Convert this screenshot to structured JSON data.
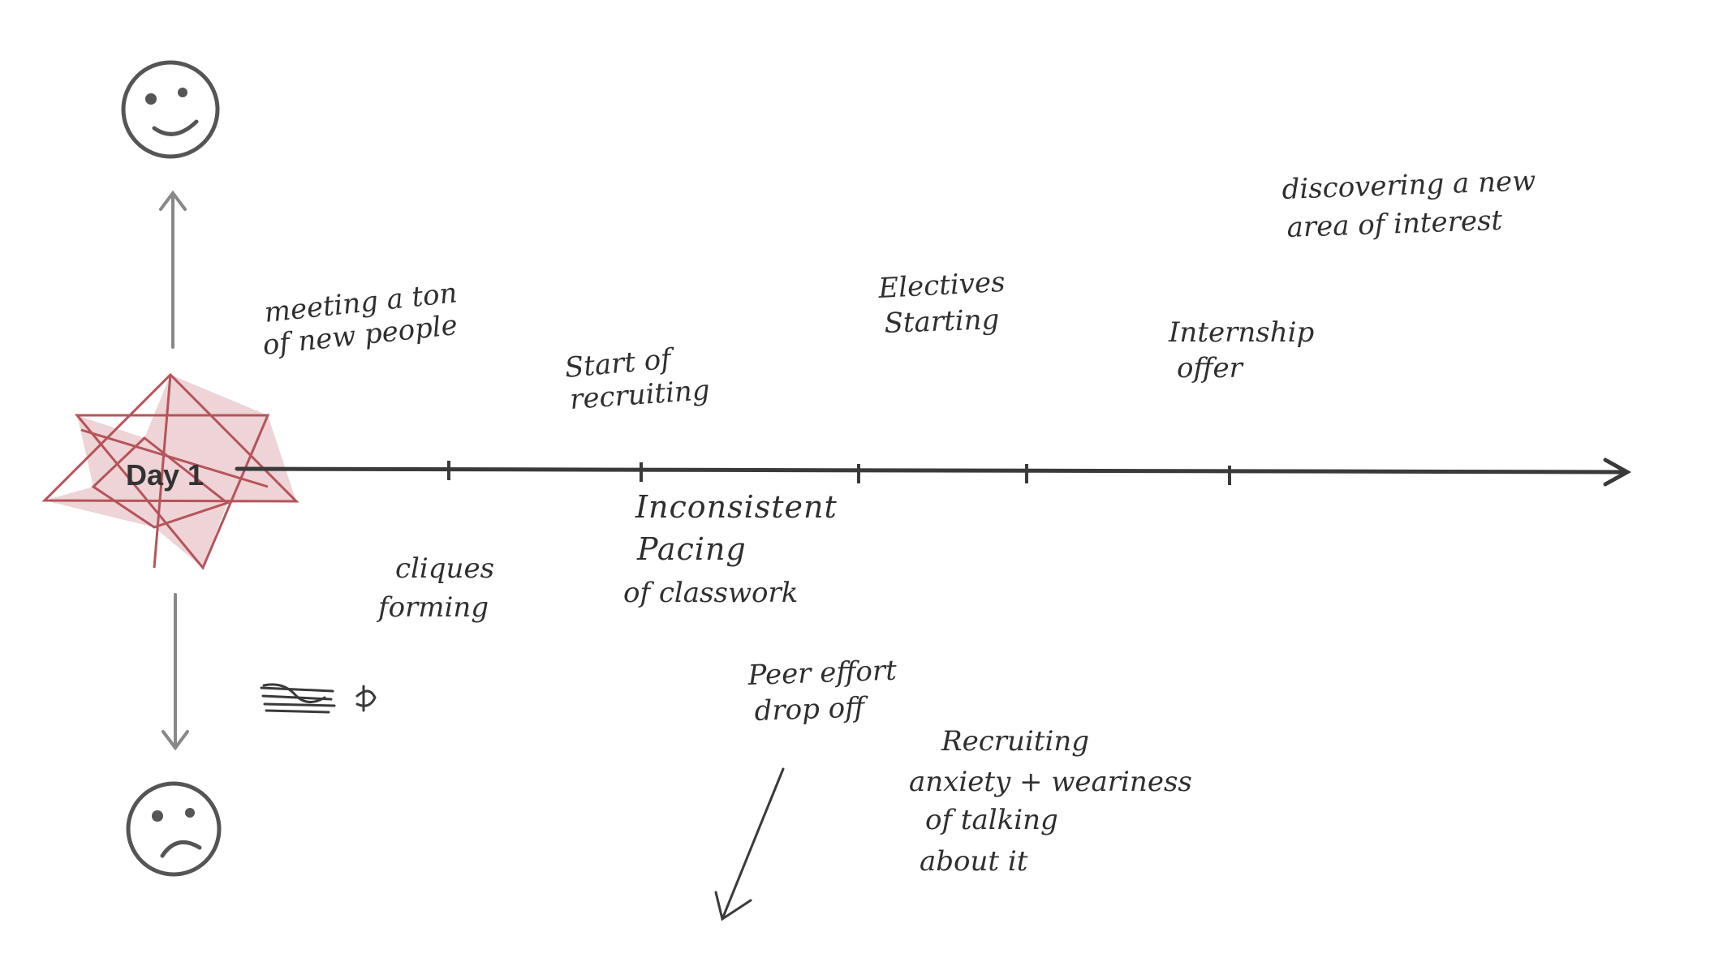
{
  "start_label": "Day 1",
  "icons": {
    "top": "happy-face-icon",
    "bottom": "sad-face-icon",
    "start_marker": "star-icon"
  },
  "colors": {
    "ink": "#3a3a3a",
    "star": "#b5545a",
    "vertical_axis": "#888888"
  },
  "above_notes": {
    "meeting": [
      "meeting a ton",
      "of new people"
    ],
    "recruiting_start": [
      "Start of",
      "recruiting"
    ],
    "electives": [
      "Electives",
      "Starting"
    ],
    "internship": [
      "Internship",
      "offer"
    ],
    "interest": [
      "discovering a new",
      "area of interest"
    ]
  },
  "below_notes": {
    "cliques": [
      "cliques",
      "forming"
    ],
    "pacing": [
      "Inconsistent",
      "Pacing",
      "of classwork"
    ],
    "peer_effort": [
      "Peer effort",
      "drop off"
    ],
    "recruiting_anxiety": [
      "Recruiting",
      "anxiety + weariness",
      "of talking",
      "about it"
    ]
  }
}
